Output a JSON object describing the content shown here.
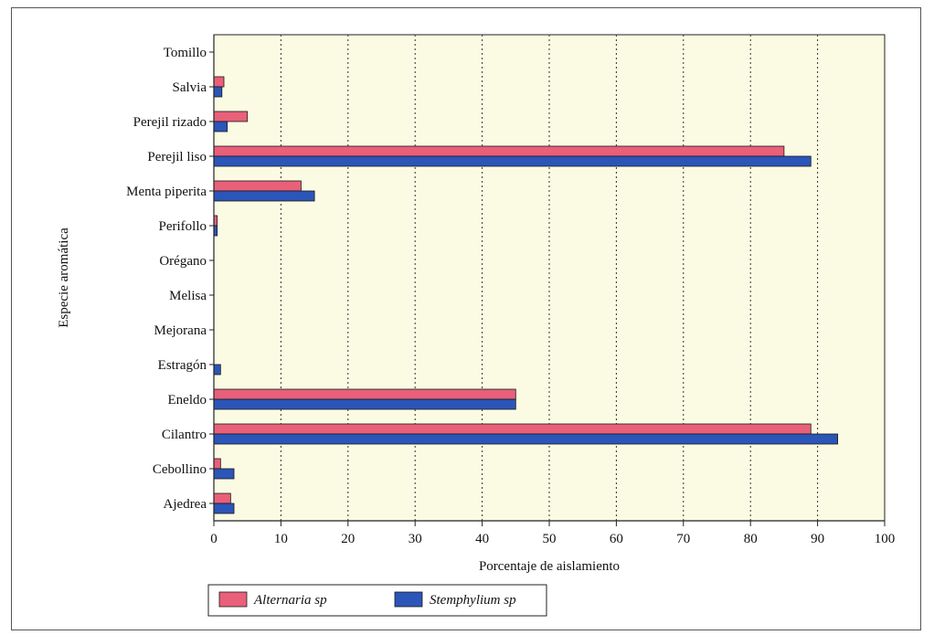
{
  "chart_data": {
    "type": "bar",
    "orientation": "horizontal",
    "categories": [
      "Tomillo",
      "Salvia",
      "Perejil rizado",
      "Perejil liso",
      "Menta piperita",
      "Perifollo",
      "Orégano",
      "Melisa",
      "Mejorana",
      "Estragón",
      "Eneldo",
      "Cilantro",
      "Cebollino",
      "Ajedrea"
    ],
    "series": [
      {
        "name": "Alternaria sp",
        "color": "#e8607a",
        "values": [
          0,
          1.5,
          5,
          85,
          13,
          0.5,
          0,
          0,
          0,
          0,
          45,
          89,
          1,
          2.5
        ]
      },
      {
        "name": "Stemphylium sp",
        "color": "#2b55b8",
        "values": [
          0,
          1.2,
          2,
          89,
          15,
          0.5,
          0,
          0,
          0,
          1,
          45,
          93,
          3,
          3
        ]
      }
    ],
    "xlabel": "Porcentaje de aislamiento",
    "ylabel": "Especie aromática",
    "xlim": [
      0,
      100
    ],
    "xticks": [
      0,
      10,
      20,
      30,
      40,
      50,
      60,
      70,
      80,
      90,
      100
    ],
    "grid": "vertical-dotted",
    "legend": "bottom",
    "plot_background": "#fbfbe3"
  }
}
